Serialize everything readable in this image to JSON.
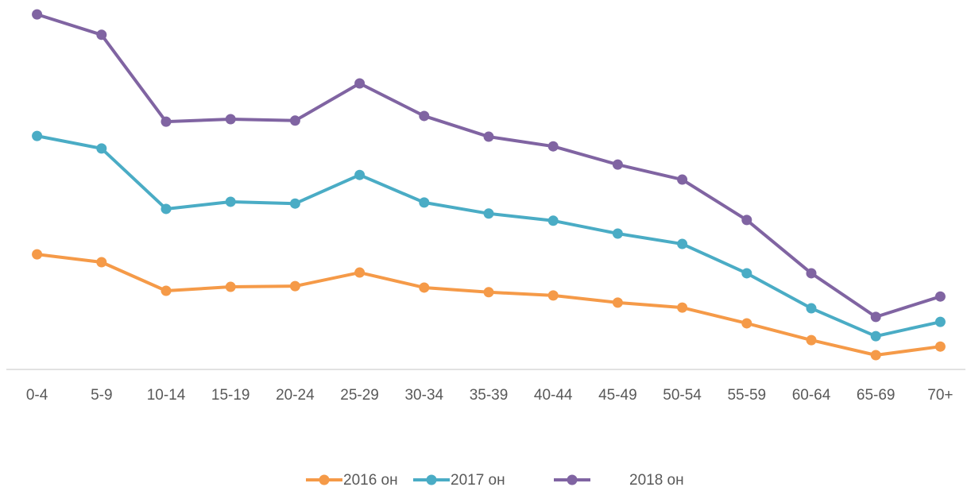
{
  "chart_data": {
    "type": "line",
    "categories": [
      "0-4",
      "5-9",
      "10-14",
      "15-19",
      "20-24",
      "25-29",
      "30-34",
      "35-39",
      "40-44",
      "45-49",
      "50-54",
      "55-59",
      "60-64",
      "65-69",
      "70+"
    ],
    "series": [
      {
        "name": "2016 он",
        "color": "#f59a48",
        "values": [
          32.2,
          30.0,
          22.0,
          23.1,
          23.3,
          27.1,
          22.9,
          21.6,
          20.7,
          18.7,
          17.3,
          12.9,
          8.2,
          4.0,
          6.4
        ]
      },
      {
        "name": "2017 он",
        "color": "#4aacc5",
        "values": [
          65.3,
          61.8,
          44.9,
          46.9,
          46.4,
          54.4,
          46.7,
          43.6,
          41.6,
          38.0,
          35.1,
          26.9,
          17.1,
          9.3,
          13.3
        ]
      },
      {
        "name": "2018 он",
        "color": "#8064a2",
        "values": [
          99.3,
          93.6,
          69.3,
          70.0,
          69.6,
          80.0,
          70.9,
          65.1,
          62.4,
          57.3,
          53.1,
          41.8,
          26.9,
          14.7,
          20.4
        ]
      }
    ],
    "ylim": [
      0,
      100
    ],
    "legend": "bottom"
  }
}
